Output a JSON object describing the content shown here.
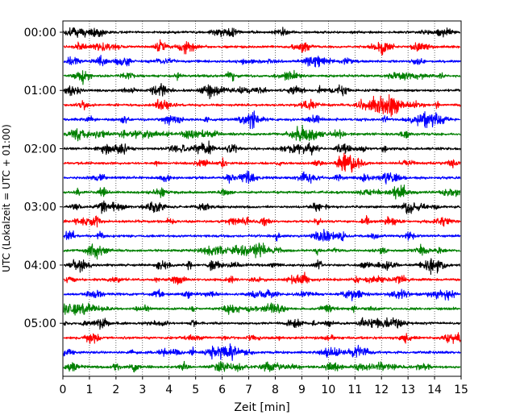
{
  "chart_data": {
    "type": "line",
    "title": "",
    "xlabel": "Zeit  [min]",
    "ylabel": "UTC (Lokalzeit = UTC + 01:00)",
    "xlim": [
      0,
      15
    ],
    "x_ticks": [
      0,
      1,
      2,
      3,
      4,
      5,
      6,
      7,
      8,
      9,
      10,
      11,
      12,
      13,
      14,
      15
    ],
    "x_grid": "dotted vertical lines at each minute",
    "y_ticks": [
      "00:00",
      "01:00",
      "02:00",
      "03:00",
      "04:00",
      "05:00"
    ],
    "trace_interval_minutes": 15,
    "trace_count": 24,
    "trace_start": "00:00",
    "trace_colors": [
      "#000000",
      "#ff0000",
      "#0000ff",
      "#008000"
    ],
    "traces": [
      {
        "start": "00:00",
        "color": "#000000"
      },
      {
        "start": "00:15",
        "color": "#ff0000"
      },
      {
        "start": "00:30",
        "color": "#0000ff"
      },
      {
        "start": "00:45",
        "color": "#008000"
      },
      {
        "start": "01:00",
        "color": "#000000"
      },
      {
        "start": "01:15",
        "color": "#ff0000"
      },
      {
        "start": "01:30",
        "color": "#0000ff"
      },
      {
        "start": "01:45",
        "color": "#008000"
      },
      {
        "start": "02:00",
        "color": "#000000"
      },
      {
        "start": "02:15",
        "color": "#ff0000"
      },
      {
        "start": "02:30",
        "color": "#0000ff"
      },
      {
        "start": "02:45",
        "color": "#008000"
      },
      {
        "start": "03:00",
        "color": "#000000"
      },
      {
        "start": "03:15",
        "color": "#ff0000"
      },
      {
        "start": "03:30",
        "color": "#0000ff"
      },
      {
        "start": "03:45",
        "color": "#008000"
      },
      {
        "start": "04:00",
        "color": "#000000"
      },
      {
        "start": "04:15",
        "color": "#ff0000"
      },
      {
        "start": "04:30",
        "color": "#0000ff"
      },
      {
        "start": "04:45",
        "color": "#008000"
      },
      {
        "start": "05:00",
        "color": "#000000"
      },
      {
        "start": "05:15",
        "color": "#ff0000"
      },
      {
        "start": "05:30",
        "color": "#0000ff"
      },
      {
        "start": "05:45",
        "color": "#008000"
      }
    ]
  }
}
